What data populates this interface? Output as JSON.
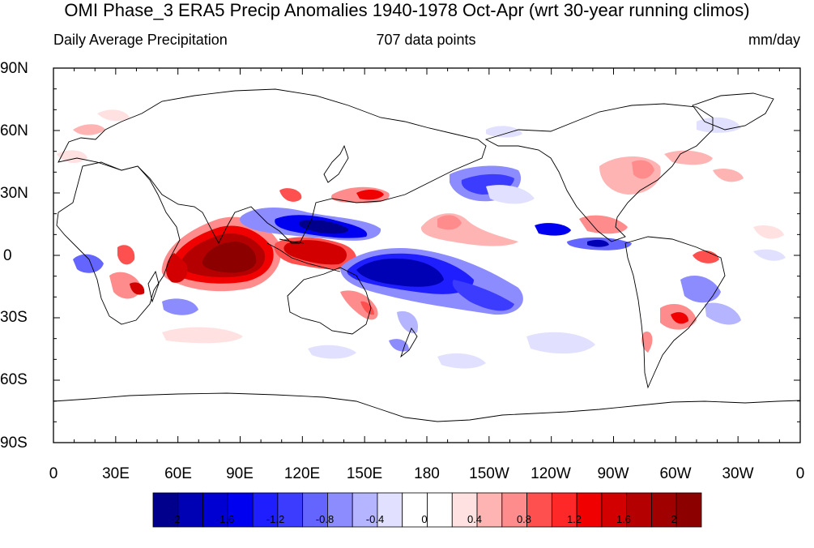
{
  "title": "OMI Phase_3 ERA5 Precip Anomalies 1940-1978 Oct-Apr (wrt 30-year running climos)",
  "subtitle_left": "Daily Average Precipitation",
  "subtitle_center": "707 data points",
  "subtitle_right": "mm/day",
  "lat_labels": [
    "90N",
    "60N",
    "30N",
    "0",
    "30S",
    "60S",
    "90S"
  ],
  "lon_labels": [
    "0",
    "30E",
    "60E",
    "90E",
    "120E",
    "150E",
    "180",
    "150W",
    "120W",
    "90W",
    "60W",
    "30W",
    "0"
  ],
  "colorbar": {
    "colors": [
      "#00008c",
      "#0000b4",
      "#0000d2",
      "#0000f0",
      "#1e1eff",
      "#3c3cff",
      "#6464ff",
      "#8c8cff",
      "#b4b4ff",
      "#e1e1ff",
      "#ffffff",
      "#ffffff",
      "#ffe1e1",
      "#ffb4b4",
      "#ff8c8c",
      "#ff5050",
      "#ff2828",
      "#f00000",
      "#d20000",
      "#b40000",
      "#a00000",
      "#8c0000"
    ],
    "tick_labels": [
      "-2",
      "-1.6",
      "-1.2",
      "-0.8",
      "-0.4",
      "0",
      "0.4",
      "0.8",
      "1.2",
      "1.6",
      "2"
    ]
  }
}
